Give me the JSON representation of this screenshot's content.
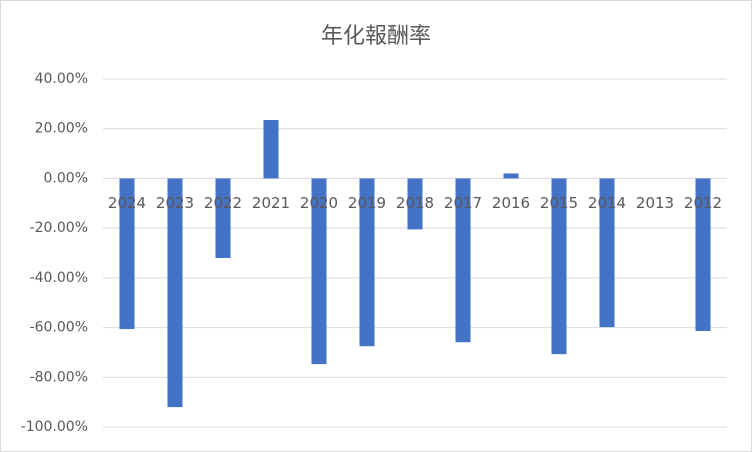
{
  "chart_data": {
    "type": "bar",
    "title": "年化報酬率",
    "categories": [
      "2024",
      "2023",
      "2022",
      "2021",
      "2020",
      "2019",
      "2018",
      "2017",
      "2016",
      "2015",
      "2014",
      "2013",
      "2012"
    ],
    "values": [
      -60.6,
      -92,
      -32,
      23.5,
      -74.7,
      -67.5,
      -20.5,
      -65.9,
      2,
      -70.7,
      -59.8,
      null,
      -61.4
    ],
    "color": "#4472c4",
    "ylim": [
      -100,
      40
    ],
    "yticks": [
      {
        "value": 40,
        "label": "40.00%"
      },
      {
        "value": 20,
        "label": "20.00%"
      },
      {
        "value": 0,
        "label": "0.00%"
      },
      {
        "value": -20,
        "label": "-20.00%"
      },
      {
        "value": -40,
        "label": "-40.00%"
      },
      {
        "value": -60,
        "label": "-60.00%"
      },
      {
        "value": -80,
        "label": "-80.00%"
      },
      {
        "value": -100,
        "label": "-100.00%"
      }
    ],
    "grid": true
  }
}
